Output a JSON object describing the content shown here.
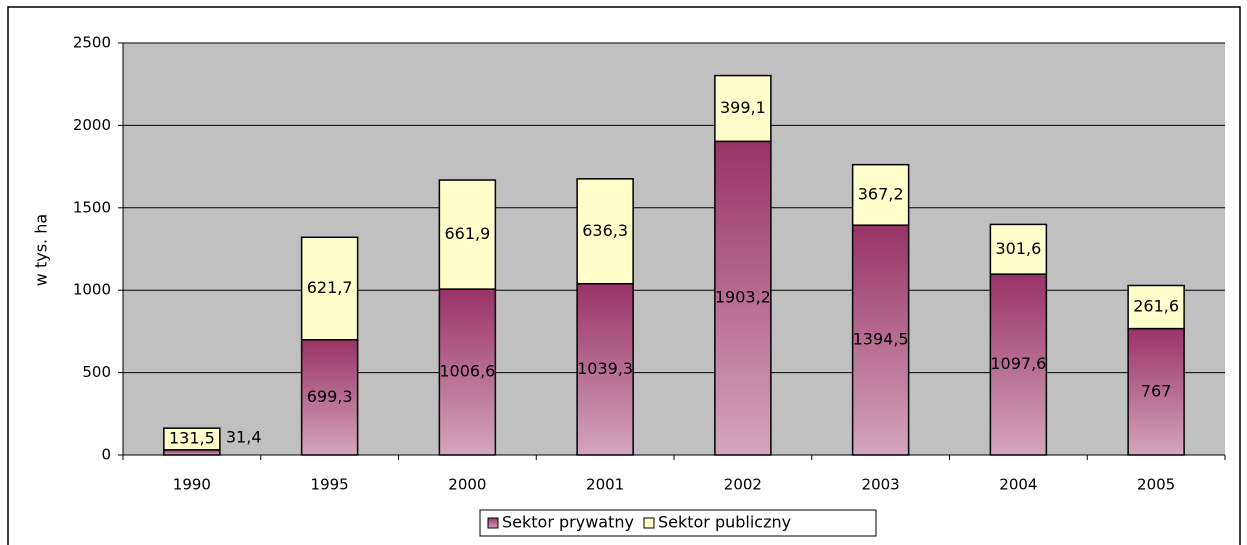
{
  "chart_data": {
    "type": "stacked_bar",
    "y_label": "w tys. ha",
    "categories": [
      "1990",
      "1995",
      "2000",
      "2001",
      "2002",
      "2003",
      "2004",
      "2005"
    ],
    "series": [
      {
        "name": "Sektor prywatny",
        "color": "#993366",
        "values": [
          31.4,
          699.3,
          1006.6,
          1039.3,
          1903.2,
          1394.5,
          1097.6,
          767
        ],
        "value_labels": [
          "31,4",
          "699,3",
          "1006,6",
          "1039,3",
          "1903,2",
          "1394,5",
          "1097,6",
          "767"
        ]
      },
      {
        "name": "Sektor publiczny",
        "color": "#ffffcc",
        "values": [
          131.5,
          621.7,
          661.9,
          636.3,
          399.1,
          367.2,
          301.6,
          261.6
        ],
        "value_labels": [
          "131,5",
          "621,7",
          "661,9",
          "636,3",
          "399,1",
          "367,2",
          "301,6",
          "261,6"
        ]
      }
    ],
    "ylim": [
      0,
      2500
    ],
    "yticks": [
      0,
      500,
      1000,
      1500,
      2000,
      2500
    ],
    "grid": true,
    "legend": "bottom"
  }
}
